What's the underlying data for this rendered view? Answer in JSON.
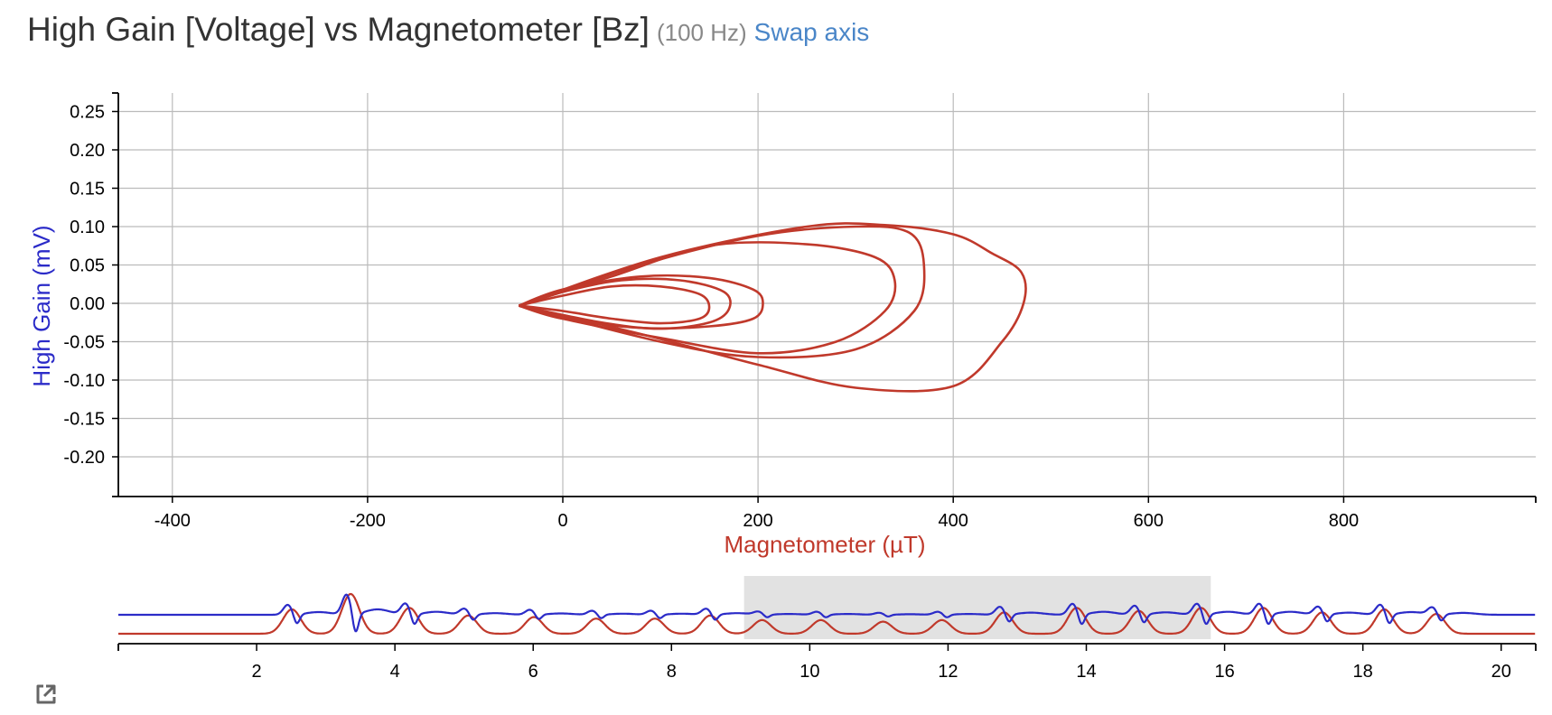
{
  "header": {
    "title": "High Gain [Voltage] vs Magnetometer [Bz]",
    "rate": "(100 Hz)",
    "swap_label": "Swap axis"
  },
  "colors": {
    "trace": "#c0392b",
    "high_gain": "#2b2bc8",
    "magnetometer": "#c0392b",
    "grid": "#bbbbbb",
    "brush": "#e2e2e2",
    "swap": "#4a86c8"
  },
  "icons": {
    "export": "external-link-icon"
  },
  "chart_data": [
    {
      "type": "scatter",
      "mode": "line",
      "title": "High Gain [Voltage] vs Magnetometer [Bz]",
      "xlabel": "Magnetometer (µT)",
      "ylabel": "High Gain (mV)",
      "xlim": [
        -457,
        995
      ],
      "ylim": [
        -0.25,
        0.275
      ],
      "xticks": [
        -400,
        -200,
        0,
        200,
        400,
        600,
        800
      ],
      "yticks": [
        0.25,
        0.2,
        0.15,
        0.1,
        0.05,
        0.0,
        -0.05,
        -0.1,
        -0.15,
        -0.2
      ],
      "ytick_labels": [
        "0.25",
        "0.20",
        "0.15",
        "0.10",
        "0.05",
        "0.00",
        "-0.05",
        "-0.10",
        "-0.15",
        "-0.20"
      ],
      "grid": true,
      "series": [
        {
          "x": [
            -45,
            0,
            50,
            100,
            140,
            150,
            140,
            100,
            50,
            0,
            -45
          ],
          "y": [
            -0.003,
            0.01,
            0.022,
            0.022,
            0.012,
            -0.005,
            -0.02,
            -0.026,
            -0.02,
            -0.01,
            -0.003
          ]
        },
        {
          "x": [
            -45,
            0,
            60,
            120,
            165,
            170,
            150,
            100,
            40,
            -45
          ],
          "y": [
            -0.003,
            0.015,
            0.03,
            0.03,
            0.015,
            -0.008,
            -0.025,
            -0.033,
            -0.025,
            -0.003
          ]
        },
        {
          "x": [
            -45,
            0,
            80,
            150,
            195,
            205,
            195,
            150,
            80,
            0,
            -45
          ],
          "y": [
            -0.003,
            0.018,
            0.035,
            0.033,
            0.018,
            0.0,
            -0.02,
            -0.03,
            -0.032,
            -0.02,
            -0.003
          ]
        },
        {
          "x": [
            -45,
            50,
            150,
            250,
            320,
            340,
            330,
            280,
            200,
            100,
            0,
            -45
          ],
          "y": [
            -0.003,
            0.035,
            0.075,
            0.077,
            0.06,
            0.03,
            -0.01,
            -0.05,
            -0.065,
            -0.045,
            -0.02,
            -0.003
          ]
        },
        {
          "x": [
            -45,
            80,
            200,
            300,
            355,
            370,
            360,
            300,
            200,
            100,
            -45
          ],
          "y": [
            -0.003,
            0.05,
            0.088,
            0.1,
            0.092,
            0.05,
            -0.01,
            -0.06,
            -0.07,
            -0.05,
            -0.003
          ]
        },
        {
          "x": [
            -45,
            100,
            250,
            330,
            400,
            440,
            470,
            472,
            450,
            400,
            300,
            200,
            80,
            -45
          ],
          "y": [
            -0.003,
            0.06,
            0.1,
            0.102,
            0.09,
            0.065,
            0.04,
            0.0,
            -0.05,
            -0.108,
            -0.11,
            -0.08,
            -0.04,
            -0.003
          ]
        }
      ]
    },
    {
      "type": "line",
      "role": "overview",
      "xlim": [
        0,
        20.5
      ],
      "xticks": [
        2,
        4,
        6,
        8,
        10,
        12,
        14,
        16,
        18,
        20
      ],
      "selection": [
        9.05,
        15.8
      ],
      "pulses": [
        2.45,
        3.3,
        4.15,
        5.0,
        5.95,
        6.85,
        7.7,
        8.5,
        9.25,
        10.1,
        11.0,
        11.85,
        12.75,
        13.8,
        14.7,
        15.6,
        16.5,
        17.35,
        18.25,
        19.0
      ],
      "amplitudes": [
        0.5,
        1.0,
        0.55,
        0.3,
        0.25,
        0.2,
        0.2,
        0.3,
        0.15,
        0.15,
        0.1,
        0.15,
        0.4,
        0.55,
        0.45,
        0.55,
        0.55,
        0.4,
        0.5,
        0.35
      ]
    }
  ]
}
